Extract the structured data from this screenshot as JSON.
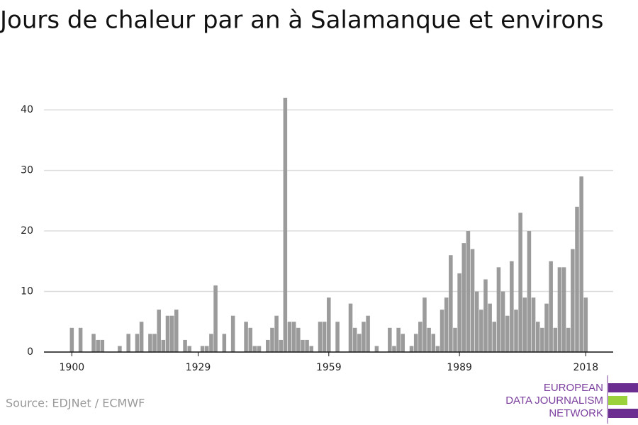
{
  "chart_data": {
    "type": "bar",
    "title": "Jours de chaleur par an à Salamanque et environs",
    "source": "Source: EDJNet / ECMWF",
    "logo": [
      "EUROPEAN",
      "DATA JOURNALISM",
      "NETWORK"
    ],
    "color": "#9b9b9b",
    "grid": true,
    "x": [
      1900,
      1901,
      1902,
      1903,
      1904,
      1905,
      1906,
      1907,
      1908,
      1909,
      1910,
      1911,
      1912,
      1913,
      1914,
      1915,
      1916,
      1917,
      1918,
      1919,
      1920,
      1921,
      1922,
      1923,
      1924,
      1925,
      1926,
      1927,
      1928,
      1929,
      1930,
      1931,
      1932,
      1933,
      1934,
      1935,
      1936,
      1937,
      1938,
      1939,
      1940,
      1941,
      1942,
      1943,
      1944,
      1945,
      1946,
      1947,
      1948,
      1949,
      1950,
      1951,
      1952,
      1953,
      1954,
      1955,
      1956,
      1957,
      1958,
      1959,
      1960,
      1961,
      1962,
      1963,
      1964,
      1965,
      1966,
      1967,
      1968,
      1969,
      1970,
      1971,
      1972,
      1973,
      1974,
      1975,
      1976,
      1977,
      1978,
      1979,
      1980,
      1981,
      1982,
      1983,
      1984,
      1985,
      1986,
      1987,
      1988,
      1989,
      1990,
      1991,
      1992,
      1993,
      1994,
      1995,
      1996,
      1997,
      1998,
      1999,
      2000,
      2001,
      2002,
      2003,
      2004,
      2005,
      2006,
      2007,
      2008,
      2009,
      2010,
      2011,
      2012,
      2013,
      2014,
      2015,
      2016,
      2017,
      2018
    ],
    "values": [
      4,
      0,
      4,
      0,
      0,
      3,
      2,
      2,
      0,
      0,
      0,
      1,
      0,
      3,
      0,
      3,
      5,
      0,
      3,
      3,
      7,
      2,
      6,
      6,
      7,
      0,
      2,
      1,
      0,
      0,
      1,
      1,
      3,
      11,
      0,
      3,
      0,
      6,
      0,
      0,
      5,
      4,
      1,
      1,
      0,
      2,
      4,
      6,
      2,
      42,
      5,
      5,
      4,
      2,
      2,
      1,
      0,
      5,
      5,
      9,
      0,
      5,
      0,
      0,
      8,
      4,
      3,
      5,
      6,
      0,
      1,
      0,
      0,
      4,
      1,
      4,
      3,
      0,
      1,
      3,
      5,
      9,
      4,
      3,
      1,
      7,
      9,
      16,
      4,
      13,
      18,
      20,
      17,
      10,
      7,
      12,
      8,
      5,
      14,
      10,
      6,
      15,
      7,
      23,
      9,
      20,
      9,
      5,
      4,
      8,
      15,
      4,
      14,
      14,
      4,
      17,
      24,
      29,
      9
    ],
    "xlim": [
      1893.6,
      2024.3
    ],
    "xticks": [
      1900,
      1929,
      1959,
      1989,
      2018
    ],
    "ylim": [
      0,
      42
    ],
    "yticks": [
      0,
      10,
      20,
      30,
      40
    ]
  }
}
